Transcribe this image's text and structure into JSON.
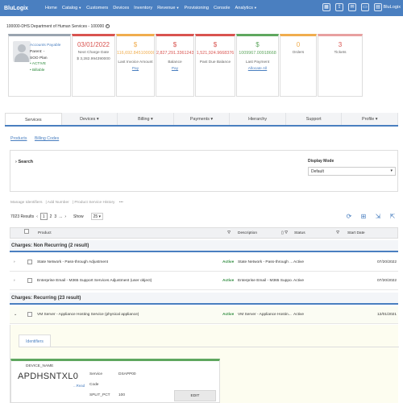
{
  "navbar": {
    "brand": "BluLogix",
    "items": [
      "Home",
      "Catalog",
      "Customers",
      "Devices",
      "Inventory",
      "Revenue",
      "Provisioning",
      "Console",
      "Analytics"
    ],
    "user": "BluLogix"
  },
  "account": {
    "title": "100000-DHS Department of Human Services - 100000",
    "profile": {
      "type": "Accounts Payable",
      "parent": "Parent: -",
      "plan": "SOO Plan",
      "status1": "• ACTIVE",
      "status2": "• Billable"
    },
    "stats": [
      {
        "big": "03/01/2022",
        "sub": "$ 3,282.994390000",
        "label": "Next Charge Date",
        "link": "",
        "color": "#d9534f"
      },
      {
        "big": "$",
        "sub": "116,692.8451000000",
        "label": "Last Invoice Amount",
        "link": "Pay",
        "color": "#f0ad4e"
      },
      {
        "big": "$",
        "sub": "2,827,291.3361243",
        "label": "Balance",
        "link": "Pay",
        "color": "#d9534f"
      },
      {
        "big": "$",
        "sub": "1,521,924.9668376",
        "label": "Past Due Balance",
        "link": "",
        "color": "#d9534f"
      },
      {
        "big": "$",
        "sub": "1009967.00918668",
        "label": "Last Payment",
        "link": "Allocate All",
        "color": "#5fa75f"
      },
      {
        "big": "0",
        "sub": "",
        "label": "Orders",
        "link": "",
        "color": "#f0ad4e"
      },
      {
        "big": "3",
        "sub": "",
        "label": "Tickets",
        "link": "",
        "color": "#e8a0a0"
      }
    ]
  },
  "tabs": [
    "Services",
    "Devices",
    "Billing",
    "Payments",
    "Hierarchy",
    "Support",
    "Profile"
  ],
  "subtabs": [
    "Products",
    "Billing Codes"
  ],
  "search": {
    "label": "Search",
    "display_mode_label": "Display Mode",
    "display_mode_value": "Default"
  },
  "actions": [
    "Manage Identifiers",
    "Add Number",
    "Product Service History"
  ],
  "pager": {
    "results": "7023 Results",
    "pages": [
      "1",
      "2",
      "3",
      "..."
    ],
    "show_label": "Show",
    "show_value": "25"
  },
  "columns": {
    "product": "Product",
    "description": "Description",
    "status": "Status",
    "start_date": "Start Date"
  },
  "groups": [
    {
      "title": "Charges: Non Recurring (2 result)"
    },
    {
      "title": "Charges: Recurring (23 result)"
    }
  ],
  "rows": [
    {
      "product": "State Network - Pass-through Adjustment",
      "badge": "Active",
      "description": "State Network - Pass-through ...",
      "status": "Active",
      "date": "07/20/2022"
    },
    {
      "product": "Enterprise Email - M365 Support Services Adjustment (user object)",
      "badge": "Active",
      "description": "Enterprise Email - M365 Suppo...",
      "status": "Active",
      "date": "07/20/2022"
    },
    {
      "product": "VM Server - Appliance Hosting Service (physical appliance)",
      "badge": "Active",
      "description": "VM Server - Appliance Hostin...",
      "status": "Active",
      "date": "12/01/2021"
    }
  ],
  "detail": {
    "tab": "Identifiers",
    "device_name_label": "DEVICE_NAME",
    "device_name": "APDHSNTXL0",
    "read_link": "...Read",
    "service_label": "Service",
    "service_value": "DSAPP00",
    "code_label": "Code",
    "split_label": "SPLIT_PCT",
    "split_value": "100",
    "edit": "EDIT"
  }
}
